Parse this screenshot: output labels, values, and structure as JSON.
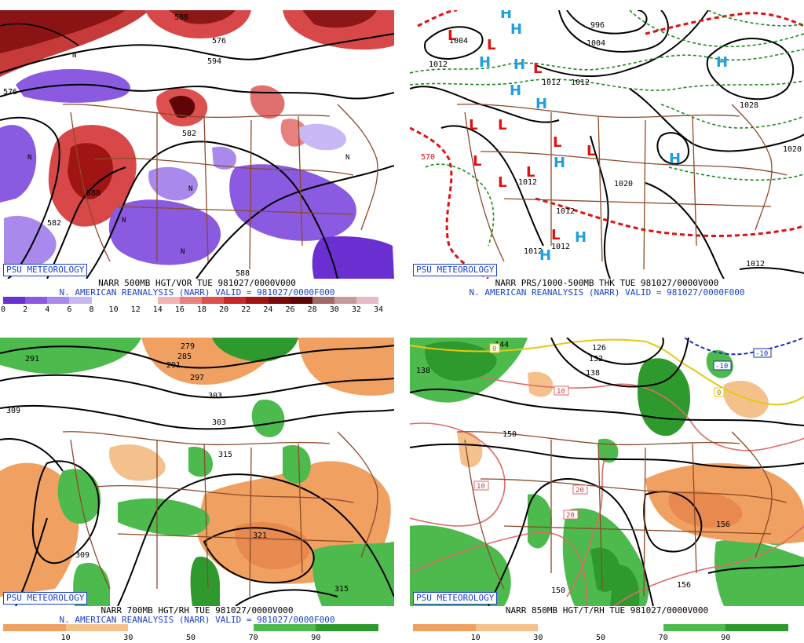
{
  "panels": [
    {
      "id": "vort",
      "badge": "PSU METEOROLOGY",
      "line1": "NARR 500MB HGT/VOR TUE 981027/0000V000",
      "line2": "N. AMERICAN REANALYSIS (NARR) VALID = 981027/0000F000",
      "colorbar": [
        "#6a2fd0",
        "#8a5ae0",
        "#a98aec",
        "#c8b8f4",
        "#ffffff",
        "#ffffff",
        "#ffffff",
        "#f2b3b3",
        "#e88080",
        "#de5050",
        "#c62828",
        "#a01414",
        "#7a0a0a",
        "#600505",
        "#a06a6a",
        "#c49a9a",
        "#e8b9c4"
      ],
      "ticks": [
        "0",
        "2",
        "4",
        "6",
        "8",
        "10",
        "12",
        "14",
        "16",
        "18",
        "20",
        "22",
        "24",
        "26",
        "28",
        "30",
        "32",
        "34"
      ],
      "contour_labels": [
        "576",
        "588",
        "582",
        "594",
        "576",
        "582",
        "588",
        "588"
      ],
      "extrema": [
        "N",
        "N",
        "N",
        "N",
        "N",
        "N"
      ]
    },
    {
      "id": "prs",
      "badge": "PSU METEOROLOGY",
      "line1": "NARR PRS/1000-500MB THK TUE 981027/0000V000",
      "line2": "N. AMERICAN REANALYSIS (NARR) VALID = 981027/0000F000",
      "contour_labels": [
        "1004",
        "1012",
        "996",
        "1004",
        "1012",
        "1012",
        "1028",
        "1020",
        "1020",
        "570",
        "1012",
        "1012",
        "1012",
        "1012",
        "1012"
      ],
      "highs": [
        "H",
        "H",
        "H",
        "H",
        "H",
        "H",
        "H",
        "H",
        "H",
        "H",
        "H"
      ],
      "lows": [
        "L",
        "L",
        "L",
        "L",
        "L",
        "L",
        "L",
        "L",
        "L",
        "L",
        "L"
      ]
    },
    {
      "id": "rh700",
      "badge": "PSU METEOROLOGY",
      "line1": "NARR 700MB HGT/RH TUE 981027/0000V000",
      "line2": "N. AMERICAN REANALYSIS (NARR) VALID = 981027/0000F000",
      "colorbar": [
        "#f0a060",
        "#f4c08c",
        "#ffffff",
        "#ffffff",
        "#4cba4c",
        "#2e9a2e"
      ],
      "ticks": [
        "10",
        "30",
        "50",
        "70",
        "90"
      ],
      "contour_labels": [
        "291",
        "279",
        "285",
        "291",
        "297",
        "303",
        "303",
        "309",
        "315",
        "309",
        "321",
        "315"
      ]
    },
    {
      "id": "rh850",
      "badge": "PSU METEOROLOGY",
      "line1": "NARR 850MB HGT/T/RH TUE 981027/0000V000",
      "colorbar": [
        "#f0a060",
        "#f4c08c",
        "#ffffff",
        "#ffffff",
        "#4cba4c",
        "#2e9a2e"
      ],
      "ticks": [
        "10",
        "30",
        "50",
        "70",
        "90"
      ],
      "contour_labels": [
        "138",
        "126",
        "132",
        "138",
        "144",
        "150",
        "150",
        "156",
        "156"
      ],
      "temp_labels": [
        "0",
        "10",
        "10",
        "20",
        "20",
        "-10",
        "-10",
        "0"
      ]
    }
  ]
}
